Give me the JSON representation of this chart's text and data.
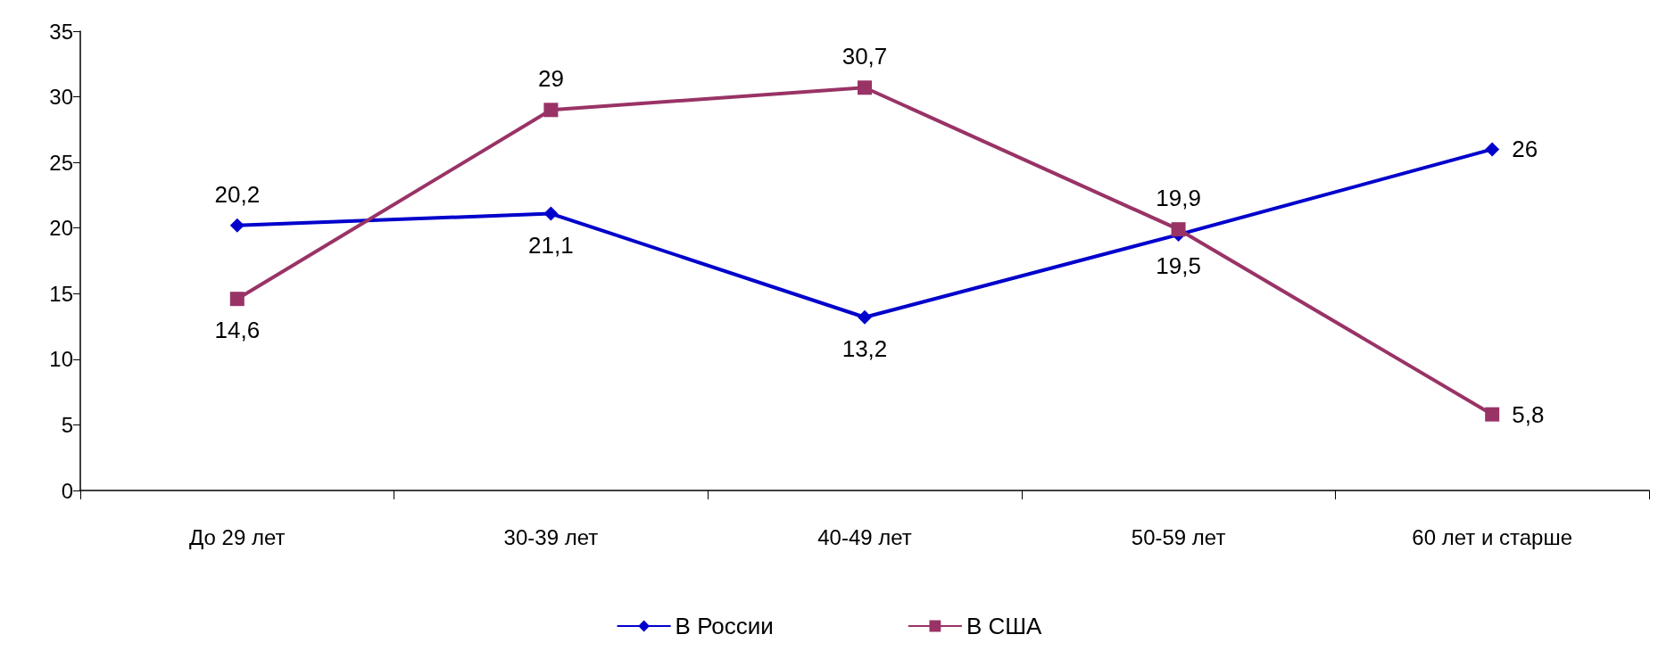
{
  "chart_data": {
    "type": "line",
    "categories": [
      "До 29 лет",
      "30-39 лет",
      "40-49 лет",
      "50-59 лет",
      "60 лет и старше"
    ],
    "series": [
      {
        "name": "В России",
        "color": "#0000cc",
        "marker": "diamond",
        "values": [
          20.2,
          21.1,
          13.2,
          19.5,
          26
        ],
        "value_labels": [
          "20,2",
          "21,1",
          "13,2",
          "19,5",
          "26"
        ]
      },
      {
        "name": "В США",
        "color": "#993366",
        "marker": "square",
        "values": [
          14.6,
          29,
          30.7,
          19.9,
          5.8
        ],
        "value_labels": [
          "14,6",
          "29",
          "30,7",
          "19,9",
          "5,8"
        ]
      }
    ],
    "ylim": [
      0,
      35
    ],
    "yticks": [
      0,
      5,
      10,
      15,
      20,
      25,
      30,
      35
    ],
    "grid": false,
    "legend": "bottom"
  }
}
